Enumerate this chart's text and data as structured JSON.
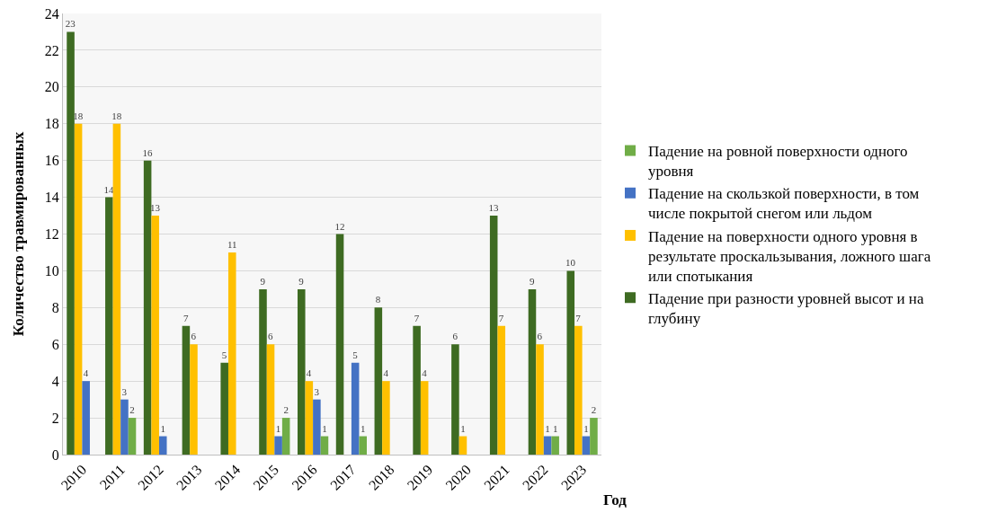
{
  "chart_data": {
    "type": "bar",
    "xlabel": "Год",
    "ylabel": "Количество травмированных",
    "categories": [
      "2010",
      "2011",
      "2012",
      "2013",
      "2014",
      "2015",
      "2016",
      "2017",
      "2018",
      "2019",
      "2020",
      "2021",
      "2022",
      "2023"
    ],
    "series": [
      {
        "name": "Падение при разности уровней высот и на глубину",
        "color": "#3e6b22",
        "values": [
          23,
          14,
          16,
          7,
          5,
          9,
          9,
          12,
          8,
          7,
          6,
          13,
          9,
          10
        ],
        "value_labels": [
          "23",
          "14",
          "16",
          "7",
          "5",
          "9",
          "9",
          "12",
          "8",
          "7",
          "6",
          "13",
          "9",
          "10"
        ]
      },
      {
        "name": "Падение на поверхности одного уровня в результате проскальзывания, ложного шага или спотыкания",
        "color": "#ffc000",
        "values": [
          18,
          18,
          13,
          6,
          11,
          6,
          4,
          null,
          4,
          4,
          1,
          7,
          6,
          7
        ],
        "value_labels": [
          "18",
          "18",
          "13",
          "6",
          "11",
          "6",
          "4",
          null,
          "4",
          "4",
          "1",
          "7",
          "6",
          "7"
        ]
      },
      {
        "name": "Падение на скользкой поверхности, в том числе покрытой снегом или льдом",
        "color": "#4472c4",
        "values": [
          4,
          3,
          1,
          null,
          null,
          1,
          3,
          5,
          null,
          null,
          null,
          null,
          1,
          1
        ],
        "value_labels": [
          "4",
          "3",
          "1",
          null,
          null,
          "1",
          "3",
          "5",
          null,
          null,
          null,
          null,
          "1",
          "1"
        ]
      },
      {
        "name": "Падение на ровной поверхности одного уровня",
        "color": "#70ad47",
        "values": [
          null,
          2,
          null,
          null,
          null,
          2,
          1,
          1,
          null,
          null,
          null,
          null,
          1,
          2
        ],
        "value_labels": [
          null,
          "2",
          null,
          null,
          null,
          "2",
          "1",
          "1",
          null,
          null,
          null,
          null,
          "1",
          "2"
        ]
      }
    ],
    "ylim": [
      0,
      24
    ],
    "yticks": [
      0,
      2,
      4,
      6,
      8,
      10,
      12,
      14,
      16,
      18,
      20,
      22,
      24
    ],
    "grid": "y",
    "legend": "right"
  }
}
